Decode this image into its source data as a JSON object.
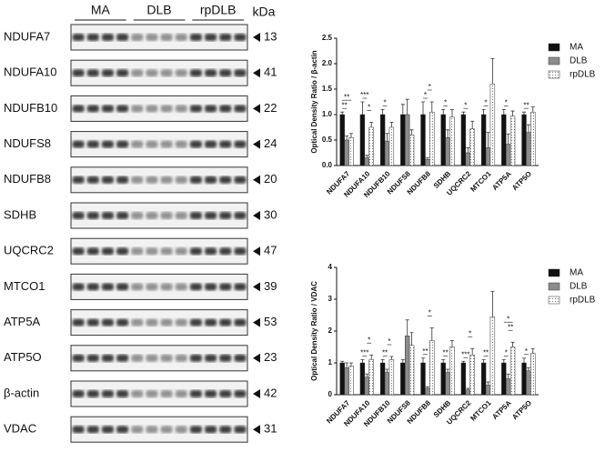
{
  "blot": {
    "groups": [
      "MA",
      "DLB",
      "rpDLB"
    ],
    "unit_label": "kDa",
    "rows": [
      {
        "name": "NDUFA7",
        "kda": 13
      },
      {
        "name": "NDUFA10",
        "kda": 41
      },
      {
        "name": "NDUFB10",
        "kda": 22
      },
      {
        "name": "NDUFS8",
        "kda": 24
      },
      {
        "name": "NDUFB8",
        "kda": 20
      },
      {
        "name": "SDHB",
        "kda": 30
      },
      {
        "name": "UQCRC2",
        "kda": 47
      },
      {
        "name": "MTCO1",
        "kda": 39
      },
      {
        "name": "ATP5A",
        "kda": 53
      },
      {
        "name": "ATP5O",
        "kda": 23
      },
      {
        "name": "β-actin",
        "kda": 42
      },
      {
        "name": "VDAC",
        "kda": 31
      }
    ]
  },
  "chart_data": [
    {
      "type": "bar",
      "ylabel": "Optical Density Ratio / β-actin",
      "categories": [
        "NDUFA7",
        "NDUFA10",
        "NDUFB10",
        "NDUFS8",
        "NDUFB8",
        "SDHB",
        "UQCRC2",
        "MTCO1",
        "ATP5A",
        "ATP5O"
      ],
      "series": [
        {
          "name": "MA",
          "color": "#111111",
          "values": [
            1,
            1,
            1,
            1,
            1,
            1,
            1,
            1,
            1,
            1
          ],
          "errors": [
            0.05,
            0.25,
            0.1,
            0.2,
            0.25,
            0.1,
            0.05,
            0.1,
            0.1,
            0.05
          ]
        },
        {
          "name": "DLB",
          "color": "#8c8c8c",
          "values": [
            0.5,
            0.15,
            0.48,
            1.0,
            0.12,
            0.55,
            0.25,
            0.35,
            0.42,
            0.65
          ],
          "errors": [
            0.08,
            0.05,
            0.15,
            0.3,
            0.03,
            0.15,
            0.1,
            0.3,
            0.2,
            0.15
          ]
        },
        {
          "name": "rpDLB",
          "color": "#e6e6e6",
          "values": [
            0.55,
            0.75,
            0.75,
            0.6,
            1.05,
            0.95,
            0.72,
            1.6,
            0.97,
            1.05
          ],
          "errors": [
            0.08,
            0.1,
            0.1,
            0.1,
            0.2,
            0.15,
            0.15,
            0.5,
            0.1,
            0.1
          ]
        }
      ],
      "ylim": [
        0,
        2.5
      ],
      "yticks": [
        {
          "value": 0,
          "label": "0.0"
        },
        0.5,
        {
          "value": 1,
          "label": "1.0"
        },
        1.5,
        {
          "value": 2,
          "label": "2.0"
        },
        2.5
      ],
      "annotations": [
        {
          "text": "**",
          "category": 0,
          "pair": [
            0,
            1
          ]
        },
        {
          "text": "**",
          "category": 0,
          "pair": [
            0,
            2
          ]
        },
        {
          "text": "***",
          "category": 1,
          "pair": [
            0,
            1
          ]
        },
        {
          "text": "*",
          "category": 1,
          "pair": [
            1,
            2
          ]
        },
        {
          "text": "*",
          "category": 2,
          "pair": [
            0,
            1
          ]
        },
        {
          "text": "*",
          "category": 4,
          "pair": [
            0,
            1
          ]
        },
        {
          "text": "*",
          "category": 4,
          "pair": [
            1,
            2
          ]
        },
        {
          "text": "*",
          "category": 5,
          "pair": [
            0,
            1
          ]
        },
        {
          "text": "*",
          "category": 6,
          "pair": [
            0,
            1
          ]
        },
        {
          "text": "*",
          "category": 7,
          "pair": [
            0,
            1
          ]
        },
        {
          "text": "*",
          "category": 8,
          "pair": [
            0,
            1
          ]
        },
        {
          "text": "**",
          "category": 9,
          "pair": [
            0,
            1
          ]
        }
      ]
    },
    {
      "type": "bar",
      "ylabel": "Optical Density Ratio / VDAC",
      "categories": [
        "NDUFA7",
        "NDUFA10",
        "NDUFB10",
        "NDUFS8",
        "NDUFB8",
        "SDHB",
        "UQCRC2",
        "MTCO1",
        "ATP5A",
        "ATP5O"
      ],
      "series": [
        {
          "name": "MA",
          "color": "#111111",
          "values": [
            1,
            1,
            1,
            1,
            1,
            1,
            1,
            1,
            1,
            1
          ],
          "errors": [
            0.05,
            0.1,
            0.1,
            0.1,
            0.15,
            0.1,
            0.05,
            0.1,
            0.1,
            0.15
          ]
        },
        {
          "name": "DLB",
          "color": "#8c8c8c",
          "values": [
            0.85,
            0.55,
            0.7,
            1.85,
            0.2,
            0.7,
            0.15,
            0.3,
            0.5,
            0.75
          ],
          "errors": [
            0.15,
            0.1,
            0.1,
            0.5,
            0.05,
            0.1,
            0.05,
            0.1,
            0.15,
            0.1
          ]
        },
        {
          "name": "rpDLB",
          "color": "#e6e6e6",
          "values": [
            0.9,
            1.1,
            1.1,
            1.55,
            1.7,
            1.5,
            1.25,
            2.45,
            1.5,
            1.3
          ],
          "errors": [
            0.1,
            0.15,
            0.1,
            0.4,
            0.4,
            0.2,
            0.2,
            0.8,
            0.15,
            0.15
          ]
        }
      ],
      "ylim": [
        0,
        4
      ],
      "yticks": [
        0,
        1,
        2,
        3,
        4
      ],
      "annotations": [
        {
          "text": "***",
          "category": 1,
          "pair": [
            0,
            1
          ]
        },
        {
          "text": "*",
          "category": 1,
          "pair": [
            1,
            2
          ]
        },
        {
          "text": "**",
          "category": 2,
          "pair": [
            0,
            1
          ]
        },
        {
          "text": "*",
          "category": 2,
          "pair": [
            1,
            2
          ]
        },
        {
          "text": "**",
          "category": 4,
          "pair": [
            0,
            1
          ]
        },
        {
          "text": "*",
          "category": 4,
          "pair": [
            1,
            2
          ]
        },
        {
          "text": "**",
          "category": 5,
          "pair": [
            0,
            1
          ]
        },
        {
          "text": "***",
          "category": 6,
          "pair": [
            0,
            1
          ]
        },
        {
          "text": "*",
          "category": 6,
          "pair": [
            1,
            2
          ]
        },
        {
          "text": "**",
          "category": 7,
          "pair": [
            0,
            1
          ]
        },
        {
          "text": "*",
          "category": 8,
          "pair": [
            0,
            1
          ]
        },
        {
          "text": "**",
          "category": 8,
          "pair": [
            1,
            2
          ]
        },
        {
          "text": "*",
          "category": 8,
          "pair": [
            0,
            2
          ]
        },
        {
          "text": "*",
          "category": 9,
          "pair": [
            0,
            1
          ]
        }
      ]
    }
  ]
}
